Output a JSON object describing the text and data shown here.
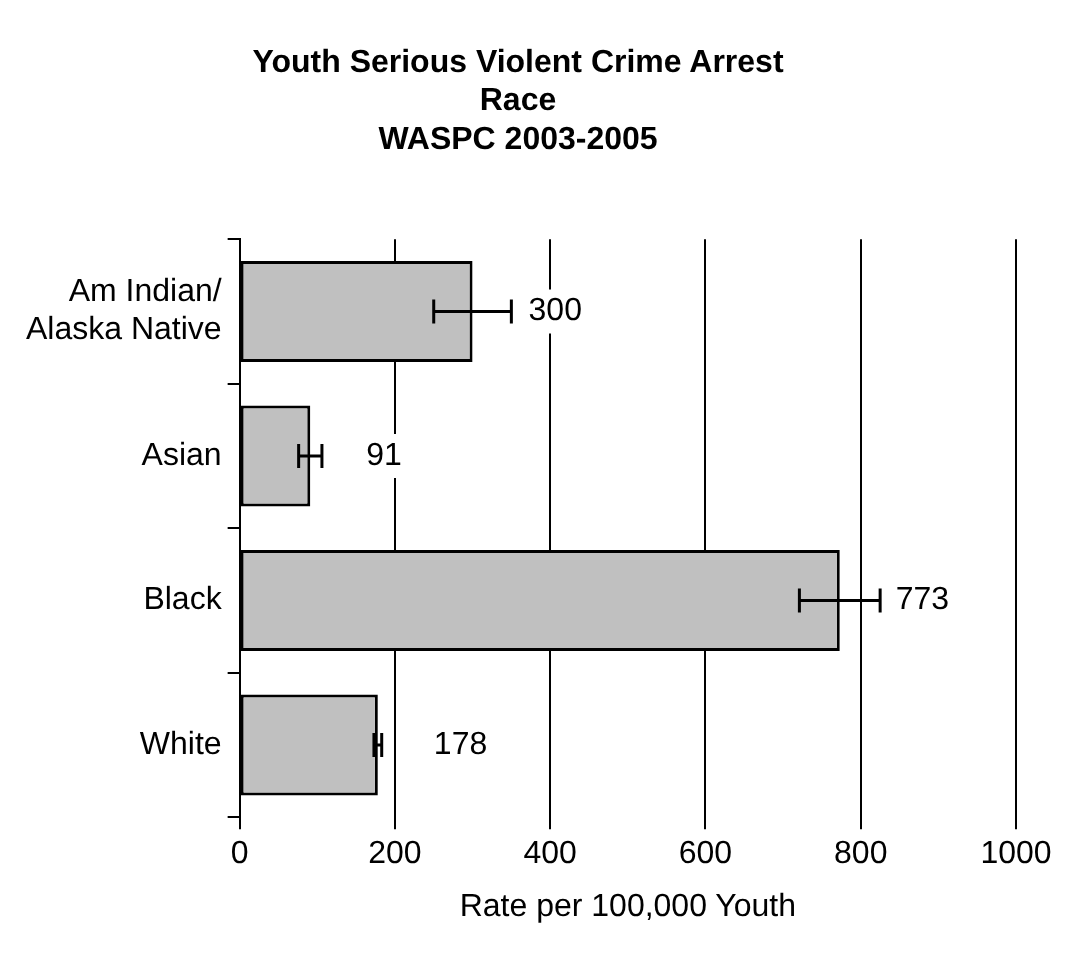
{
  "chart_data": {
    "type": "bar",
    "orientation": "horizontal",
    "title": "Youth Serious Violent Crime Arrest\nRace\nWASPC 2003-2005",
    "xlabel": "Rate per 100,000 Youth",
    "categories": [
      "Am Indian/\nAlaska Native",
      "Asian",
      "Black",
      "White"
    ],
    "values": [
      300,
      91,
      773,
      178
    ],
    "errors": [
      50,
      15,
      52,
      5
    ],
    "color": "#c0c0c0",
    "xlim": [
      0,
      1000
    ],
    "xticks": [
      0,
      200,
      400,
      600,
      800,
      1000
    ],
    "grid": "x",
    "data_labels": true,
    "legend": false
  }
}
